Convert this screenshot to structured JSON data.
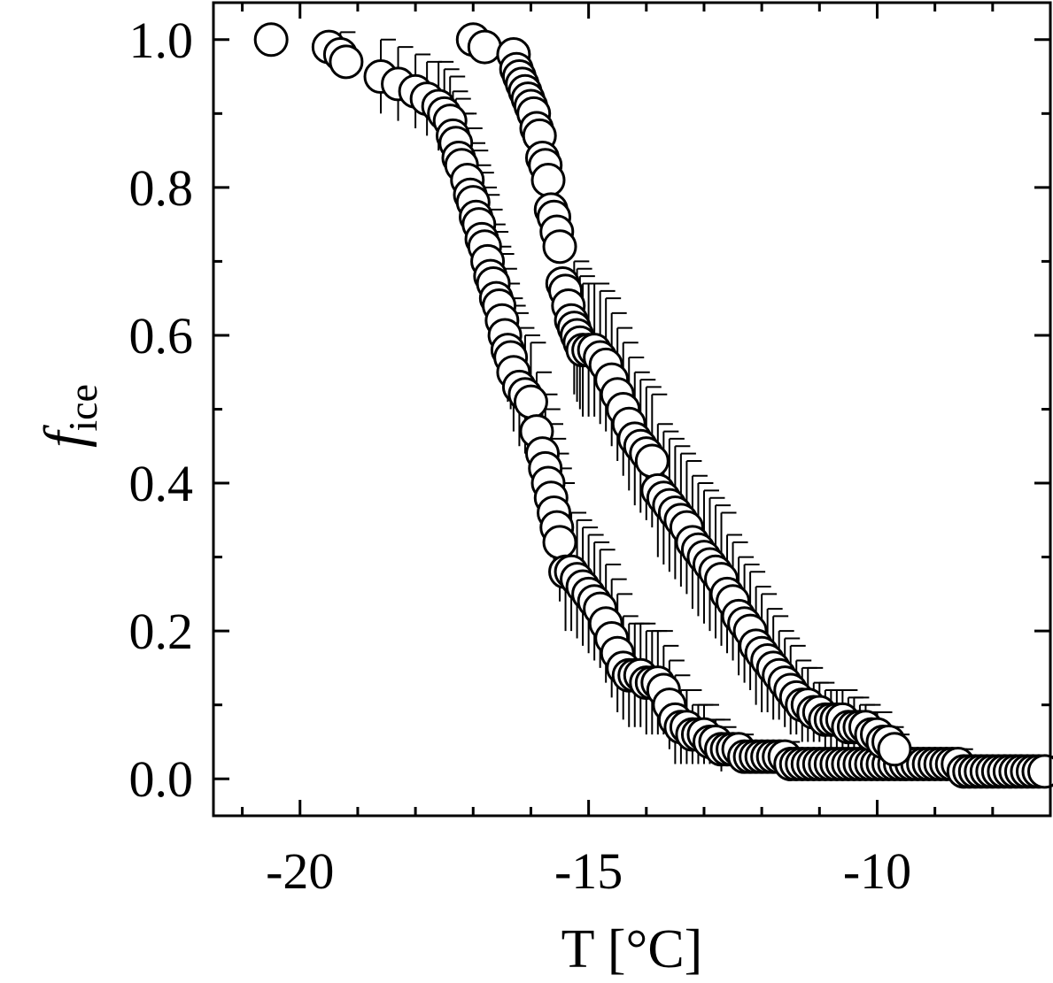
{
  "chart_data": {
    "type": "scatter",
    "xlabel": "T [°C]",
    "ylabel": {
      "main": "f",
      "subscript": "ice"
    },
    "xlim": [
      -21.5,
      -7
    ],
    "ylim": [
      -0.05,
      1.05
    ],
    "x_ticks": [
      -20,
      -15,
      -10
    ],
    "x_tick_labels": [
      "-20",
      "-15",
      "-10"
    ],
    "y_ticks": [
      0.0,
      0.2,
      0.4,
      0.6,
      0.8,
      1.0
    ],
    "y_tick_labels": [
      "0.0",
      "0.2",
      "0.4",
      "0.6",
      "0.8",
      "1.0"
    ],
    "x_minor_step": 1,
    "y_minor_step": 0.1,
    "grid": false,
    "legend": "none",
    "marker": {
      "shape": "open circle",
      "fill": "#ffffff",
      "stroke": "#000000"
    },
    "series": [
      {
        "x": [
          -20.5,
          -19.5,
          -19.3,
          -19.2,
          -18.6,
          -18.3,
          -18.0,
          -17.8,
          -17.6,
          -17.5,
          -17.4,
          -17.35,
          -17.3,
          -17.25,
          -17.2,
          -17.1,
          -17.05,
          -17.0,
          -16.95,
          -16.9,
          -16.85,
          -16.8,
          -16.75,
          -16.7,
          -16.65,
          -16.6,
          -16.55,
          -16.5,
          -16.45,
          -16.4,
          -16.35,
          -16.3,
          -16.2,
          -16.1,
          -16.0,
          -15.9,
          -15.8,
          -15.75,
          -15.7,
          -15.65,
          -15.6,
          -15.55,
          -15.5,
          -15.4,
          -15.3,
          -15.2,
          -15.1,
          -15.0,
          -14.9,
          -14.8,
          -14.7,
          -14.6,
          -14.5,
          -14.4,
          -14.3,
          -14.2,
          -14.1,
          -14.0,
          -13.9,
          -13.8,
          -13.7,
          -13.6,
          -13.5,
          -13.4,
          -13.3,
          -13.2,
          -13.1,
          -13.0,
          -12.9,
          -12.8,
          -12.7,
          -12.6,
          -12.5,
          -12.4,
          -12.3,
          -12.2,
          -12.1,
          -12.0,
          -11.9,
          -11.8,
          -11.7,
          -11.6,
          -11.5,
          -11.4,
          -11.3,
          -11.2,
          -11.1,
          -11.0,
          -10.9,
          -10.8,
          -10.7,
          -10.6,
          -10.5,
          -10.4,
          -10.3,
          -10.2,
          -10.1,
          -10.0,
          -9.9,
          -9.8,
          -9.7,
          -9.6,
          -9.5,
          -9.4,
          -9.3,
          -9.2,
          -9.1,
          -9.0,
          -8.9,
          -8.8,
          -8.7,
          -8.6,
          -8.5,
          -8.4,
          -8.3,
          -8.2,
          -8.1,
          -8.0,
          -7.9,
          -7.8,
          -7.7,
          -7.6,
          -7.5,
          -7.4,
          -7.3,
          -7.2,
          -7.1
        ],
        "y": [
          1.0,
          0.99,
          0.98,
          0.97,
          0.95,
          0.94,
          0.93,
          0.92,
          0.91,
          0.9,
          0.89,
          0.87,
          0.86,
          0.84,
          0.83,
          0.81,
          0.79,
          0.78,
          0.76,
          0.75,
          0.73,
          0.72,
          0.7,
          0.68,
          0.67,
          0.65,
          0.64,
          0.62,
          0.6,
          0.58,
          0.57,
          0.55,
          0.53,
          0.52,
          0.51,
          0.47,
          0.44,
          0.42,
          0.4,
          0.38,
          0.36,
          0.34,
          0.32,
          0.28,
          0.28,
          0.27,
          0.26,
          0.25,
          0.24,
          0.23,
          0.21,
          0.19,
          0.17,
          0.15,
          0.14,
          0.14,
          0.14,
          0.13,
          0.13,
          0.13,
          0.12,
          0.1,
          0.08,
          0.07,
          0.07,
          0.06,
          0.06,
          0.06,
          0.05,
          0.05,
          0.04,
          0.04,
          0.04,
          0.04,
          0.03,
          0.03,
          0.03,
          0.03,
          0.03,
          0.03,
          0.03,
          0.03,
          0.02,
          0.02,
          0.02,
          0.02,
          0.02,
          0.02,
          0.02,
          0.02,
          0.02,
          0.02,
          0.02,
          0.02,
          0.02,
          0.02,
          0.02,
          0.02,
          0.02,
          0.02,
          0.02,
          0.02,
          0.02,
          0.02,
          0.02,
          0.02,
          0.02,
          0.02,
          0.02,
          0.02,
          0.02,
          0.02,
          0.01,
          0.01,
          0.01,
          0.01,
          0.01,
          0.01,
          0.01,
          0.01,
          0.01,
          0.01,
          0.01,
          0.01,
          0.01,
          0.01,
          0.01
        ],
        "err": [
          0.0,
          0.0,
          0.03,
          0.0,
          0.05,
          0.05,
          0.05,
          0.05,
          0.06,
          0.06,
          0.06,
          0.06,
          0.06,
          0.06,
          0.07,
          0.07,
          0.07,
          0.07,
          0.07,
          0.07,
          0.07,
          0.07,
          0.07,
          0.07,
          0.07,
          0.07,
          0.07,
          0.07,
          0.07,
          0.07,
          0.07,
          0.08,
          0.08,
          0.08,
          0.08,
          0.08,
          0.08,
          0.08,
          0.08,
          0.08,
          0.08,
          0.08,
          0.08,
          0.08,
          0.08,
          0.08,
          0.08,
          0.08,
          0.08,
          0.08,
          0.08,
          0.08,
          0.08,
          0.07,
          0.07,
          0.07,
          0.07,
          0.07,
          0.07,
          0.07,
          0.06,
          0.06,
          0.06,
          0.05,
          0.05,
          0.04,
          0.04,
          0.04,
          0.03,
          0.03,
          0.03,
          0.02,
          0.02,
          0.02,
          0.02,
          0.02,
          0.02,
          0.02,
          0.02,
          0.02,
          0.02,
          0.02,
          0.02,
          0.02,
          0.02,
          0.02,
          0.02,
          0.02,
          0.02,
          0.02,
          0.02,
          0.02,
          0.02,
          0.02,
          0.02,
          0.02,
          0.02,
          0.02,
          0.02,
          0.02,
          0.02,
          0.02,
          0.02,
          0.02,
          0.02,
          0.02,
          0.02,
          0.02,
          0.02,
          0.02,
          0.02,
          0.02,
          0.02,
          0.02,
          0.02,
          0.02,
          0.02,
          0.02,
          0.02,
          0.02,
          0.02,
          0.02,
          0.02,
          0.02,
          0.02,
          0.02,
          0.02
        ]
      },
      {
        "x": [
          -17.0,
          -16.8,
          -16.3,
          -16.25,
          -16.2,
          -16.15,
          -16.1,
          -16.05,
          -16.0,
          -15.95,
          -15.9,
          -15.85,
          -15.8,
          -15.75,
          -15.7,
          -15.65,
          -15.6,
          -15.55,
          -15.5,
          -15.45,
          -15.4,
          -15.35,
          -15.3,
          -15.25,
          -15.2,
          -15.15,
          -15.1,
          -15.0,
          -14.9,
          -14.8,
          -14.7,
          -14.6,
          -14.5,
          -14.4,
          -14.3,
          -14.2,
          -14.1,
          -14.0,
          -13.9,
          -13.8,
          -13.7,
          -13.6,
          -13.5,
          -13.4,
          -13.3,
          -13.2,
          -13.1,
          -13.0,
          -12.9,
          -12.8,
          -12.7,
          -12.6,
          -12.5,
          -12.4,
          -12.3,
          -12.2,
          -12.1,
          -12.0,
          -11.9,
          -11.8,
          -11.7,
          -11.6,
          -11.5,
          -11.4,
          -11.3,
          -11.2,
          -11.1,
          -11.0,
          -10.9,
          -10.8,
          -10.7,
          -10.6,
          -10.5,
          -10.4,
          -10.3,
          -10.2,
          -10.1,
          -10.0,
          -9.9,
          -9.8,
          -9.7
        ],
        "y": [
          1.0,
          0.99,
          0.98,
          0.96,
          0.95,
          0.94,
          0.93,
          0.92,
          0.91,
          0.9,
          0.88,
          0.87,
          0.84,
          0.83,
          0.81,
          0.77,
          0.76,
          0.74,
          0.72,
          0.67,
          0.66,
          0.64,
          0.62,
          0.61,
          0.6,
          0.59,
          0.58,
          0.58,
          0.58,
          0.57,
          0.56,
          0.54,
          0.52,
          0.5,
          0.48,
          0.46,
          0.45,
          0.44,
          0.43,
          0.39,
          0.38,
          0.37,
          0.36,
          0.35,
          0.34,
          0.32,
          0.31,
          0.3,
          0.29,
          0.28,
          0.27,
          0.25,
          0.24,
          0.22,
          0.21,
          0.2,
          0.18,
          0.17,
          0.16,
          0.15,
          0.14,
          0.13,
          0.12,
          0.11,
          0.1,
          0.1,
          0.09,
          0.09,
          0.08,
          0.08,
          0.08,
          0.08,
          0.07,
          0.07,
          0.07,
          0.07,
          0.06,
          0.06,
          0.05,
          0.05,
          0.04
        ],
        "err": [
          0.0,
          0.0,
          0.0,
          0.0,
          0.0,
          0.0,
          0.0,
          0.0,
          0.0,
          0.0,
          0.0,
          0.0,
          0.0,
          0.0,
          0.0,
          0.0,
          0.0,
          0.0,
          0.0,
          0.0,
          0.0,
          0.0,
          0.0,
          0.09,
          0.09,
          0.09,
          0.09,
          0.09,
          0.09,
          0.09,
          0.09,
          0.09,
          0.09,
          0.09,
          0.09,
          0.09,
          0.09,
          0.09,
          0.09,
          0.09,
          0.09,
          0.09,
          0.09,
          0.09,
          0.09,
          0.09,
          0.09,
          0.09,
          0.09,
          0.09,
          0.09,
          0.08,
          0.08,
          0.08,
          0.08,
          0.08,
          0.08,
          0.08,
          0.07,
          0.07,
          0.06,
          0.06,
          0.06,
          0.05,
          0.05,
          0.05,
          0.04,
          0.04,
          0.04,
          0.04,
          0.04,
          0.04,
          0.04,
          0.04,
          0.03,
          0.03,
          0.03,
          0.03,
          0.02,
          0.02,
          0.02
        ]
      }
    ]
  }
}
